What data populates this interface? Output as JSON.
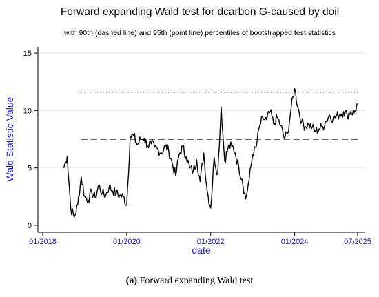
{
  "chart_data": {
    "type": "line",
    "title": "Forward expanding Wald test for dcarbon G-caused by doil",
    "subtitle": "with 90th (dashed line) and 95th (point line) percentiles of bootstrapped test statistics",
    "xlabel": "date",
    "ylabel": "Wald Statistic Value",
    "xticks": [
      "01/2018",
      "01/2020",
      "01/2022",
      "01/2024",
      "07/2025"
    ],
    "yticks": [
      0,
      5,
      10,
      15
    ],
    "xlim": [
      "2018-01",
      "2025-07"
    ],
    "ylim": [
      0,
      15
    ],
    "grid": "horizontal",
    "reference_lines": [
      {
        "label": "90th percentile",
        "style": "dashed",
        "value": 7.5
      },
      {
        "label": "95th percentile",
        "style": "dotted",
        "value": 11.6
      }
    ],
    "series": [
      {
        "x": [
          "2018-07",
          "2018-08",
          "2018-09",
          "2018-10",
          "2018-11",
          "2018-12",
          "2019-01",
          "2019-02",
          "2019-03",
          "2019-04",
          "2019-05",
          "2019-06",
          "2019-07",
          "2019-08",
          "2019-09",
          "2019-10",
          "2019-11",
          "2019-12",
          "2020-01",
          "2020-02",
          "2020-03",
          "2020-04",
          "2020-05",
          "2020-06",
          "2020-07",
          "2020-08",
          "2020-09",
          "2020-10",
          "2020-11",
          "2020-12",
          "2021-01",
          "2021-02",
          "2021-03",
          "2021-04",
          "2021-05",
          "2021-06",
          "2021-07",
          "2021-08",
          "2021-09",
          "2021-10",
          "2021-11",
          "2021-12",
          "2022-01",
          "2022-02",
          "2022-03",
          "2022-04",
          "2022-05",
          "2022-06",
          "2022-07",
          "2022-08",
          "2022-09",
          "2022-10",
          "2022-11",
          "2022-12",
          "2023-01",
          "2023-02",
          "2023-03",
          "2023-04",
          "2023-05",
          "2023-06",
          "2023-07",
          "2023-08",
          "2023-09",
          "2023-10",
          "2023-11",
          "2023-12",
          "2024-01",
          "2024-02",
          "2024-03",
          "2024-04",
          "2024-05",
          "2024-06",
          "2024-07",
          "2024-08",
          "2024-09",
          "2024-10",
          "2024-11",
          "2024-12",
          "2025-01",
          "2025-02",
          "2025-03",
          "2025-04",
          "2025-05",
          "2025-06",
          "2025-07"
        ],
        "values": [
          5.0,
          6.0,
          1.5,
          0.7,
          1.8,
          4.2,
          2.5,
          2.2,
          2.9,
          2.4,
          3.5,
          2.8,
          2.6,
          3.4,
          3.0,
          2.8,
          2.6,
          2.5,
          1.8,
          7.7,
          7.8,
          7.0,
          7.5,
          7.6,
          6.9,
          7.1,
          6.8,
          6.6,
          6.3,
          6.9,
          6.5,
          5.4,
          4.3,
          6.2,
          6.8,
          6.0,
          5.0,
          4.7,
          5.7,
          3.8,
          6.3,
          3.0,
          1.5,
          5.9,
          4.5,
          10.3,
          5.6,
          6.8,
          6.9,
          6.3,
          5.1,
          4.0,
          2.3,
          4.0,
          6.2,
          6.8,
          8.7,
          9.3,
          9.2,
          9.9,
          8.8,
          9.4,
          8.7,
          7.6,
          8.0,
          10.2,
          11.9,
          10.2,
          9.0,
          8.6,
          8.8,
          8.5,
          8.2,
          8.4,
          8.6,
          9.1,
          9.6,
          9.3,
          9.5,
          9.7,
          9.9,
          9.6,
          9.9,
          9.8,
          10.6
        ]
      }
    ]
  },
  "caption": {
    "label": "(a)",
    "text": " Forward expanding Wald test"
  }
}
